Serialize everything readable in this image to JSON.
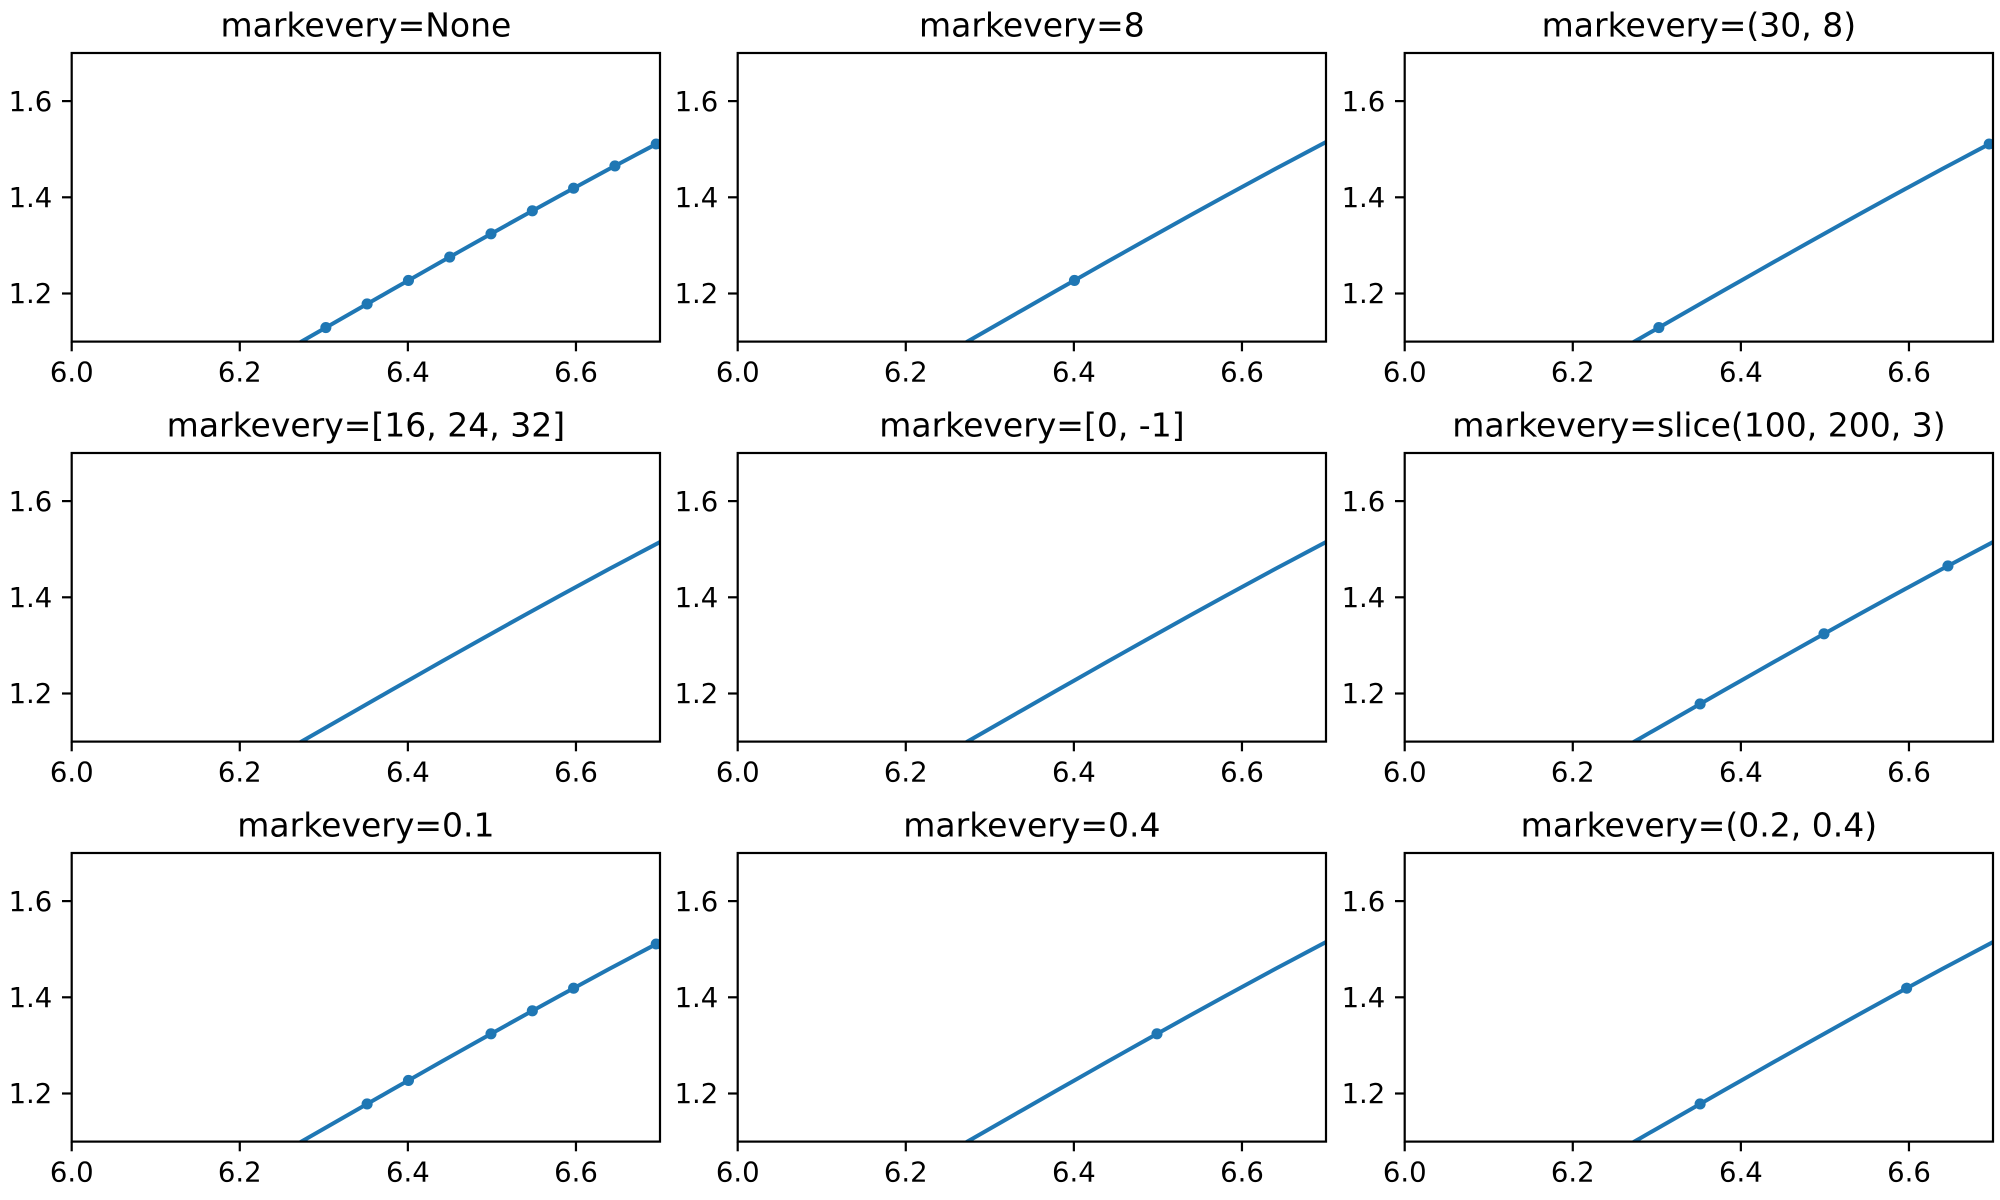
{
  "figure": {
    "background_color": "#ffffff",
    "line_color": "#1f77b4",
    "axis_color": "#000000",
    "text_color": "#000000"
  },
  "chart_data": {
    "type": "line",
    "description": "3x3 grid of subplots demonstrating the matplotlib markevery property; all panels share the same sine curve y = sin(x) + 1.11, zoomed to x in [6.0, 6.7], y in [1.1, 1.7]",
    "xlim": [
      6.0,
      6.7
    ],
    "ylim": [
      1.1,
      1.7
    ],
    "grid": false,
    "legend": false,
    "xticks": {
      "values": [
        6.0,
        6.2,
        6.4,
        6.6
      ],
      "labels": [
        "6.0",
        "6.2",
        "6.4",
        "6.6"
      ]
    },
    "yticks": {
      "values": [
        1.2,
        1.4,
        1.6
      ],
      "labels": [
        "1.2",
        "1.4",
        "1.6"
      ]
    },
    "line": {
      "x": [
        6.24,
        6.26,
        6.28,
        6.3,
        6.32,
        6.34,
        6.36,
        6.38,
        6.4,
        6.42,
        6.44,
        6.46,
        6.48,
        6.5,
        6.52,
        6.54,
        6.56,
        6.58,
        6.6,
        6.62,
        6.64,
        6.66,
        6.68,
        6.7
      ],
      "y": [
        1.0668,
        1.0868,
        1.1068,
        1.1268,
        1.1468,
        1.1668,
        1.1867,
        1.2067,
        1.2265,
        1.2464,
        1.2662,
        1.2859,
        1.3055,
        1.3251,
        1.3446,
        1.364,
        1.3833,
        1.4025,
        1.4215,
        1.4405,
        1.4593,
        1.4779,
        1.4964,
        1.5148
      ]
    },
    "panels": [
      {
        "title": "markevery=None",
        "markers": [
          [
            6.3024,
            1.1292
          ],
          [
            6.3515,
            1.1783
          ],
          [
            6.4007,
            1.2272
          ],
          [
            6.4498,
            1.2758
          ],
          [
            6.4989,
            1.3241
          ],
          [
            6.5481,
            1.3718
          ],
          [
            6.5972,
            1.4189
          ],
          [
            6.6464,
            1.4653
          ],
          [
            6.6955,
            1.5108
          ]
        ]
      },
      {
        "title": "markevery=8",
        "markers": [
          [
            6.4007,
            1.2272
          ]
        ]
      },
      {
        "title": "markevery=(30, 8)",
        "markers": [
          [
            6.3024,
            1.1292
          ],
          [
            6.6955,
            1.5108
          ]
        ]
      },
      {
        "title": "markevery=[16, 24, 32]",
        "markers": []
      },
      {
        "title": "markevery=[0, -1]",
        "markers": []
      },
      {
        "title": "markevery=slice(100, 200, 3)",
        "markers": [
          [
            6.3515,
            1.1783
          ],
          [
            6.4989,
            1.3241
          ],
          [
            6.6464,
            1.4653
          ]
        ]
      },
      {
        "title": "markevery=0.1",
        "markers": [
          [
            6.3515,
            1.1783
          ],
          [
            6.4007,
            1.2272
          ],
          [
            6.4989,
            1.3241
          ],
          [
            6.5481,
            1.3718
          ],
          [
            6.5972,
            1.4189
          ],
          [
            6.6955,
            1.5108
          ]
        ]
      },
      {
        "title": "markevery=0.4",
        "markers": [
          [
            6.4989,
            1.3241
          ]
        ]
      },
      {
        "title": "markevery=(0.2, 0.4)",
        "markers": [
          [
            6.3515,
            1.1783
          ],
          [
            6.5972,
            1.4189
          ]
        ]
      }
    ]
  }
}
